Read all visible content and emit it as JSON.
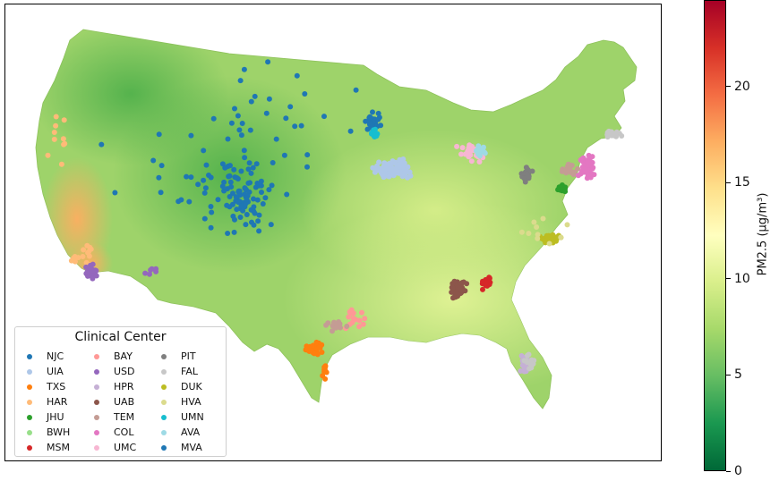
{
  "legend": {
    "title": "Clinical Center",
    "centers": [
      {
        "code": "NJC",
        "color": "#1f77b4"
      },
      {
        "code": "UIA",
        "color": "#aec7e8"
      },
      {
        "code": "TXS",
        "color": "#ff7f0e"
      },
      {
        "code": "HAR",
        "color": "#ffbb78"
      },
      {
        "code": "JHU",
        "color": "#2ca02c"
      },
      {
        "code": "BWH",
        "color": "#98df8a"
      },
      {
        "code": "MSM",
        "color": "#d62728"
      },
      {
        "code": "BAY",
        "color": "#ff9896"
      },
      {
        "code": "USD",
        "color": "#9467bd"
      },
      {
        "code": "HPR",
        "color": "#c5b0d5"
      },
      {
        "code": "UAB",
        "color": "#8c564b"
      },
      {
        "code": "TEM",
        "color": "#c49c94"
      },
      {
        "code": "COL",
        "color": "#e377c2"
      },
      {
        "code": "UMC",
        "color": "#f7b6d2"
      },
      {
        "code": "PIT",
        "color": "#7f7f7f"
      },
      {
        "code": "FAL",
        "color": "#c7c7c7"
      },
      {
        "code": "DUK",
        "color": "#bcbd22"
      },
      {
        "code": "HVA",
        "color": "#dbdb8d"
      },
      {
        "code": "UMN",
        "color": "#17becf"
      },
      {
        "code": "AVA",
        "color": "#9edae5"
      },
      {
        "code": "MVA",
        "color": "#1f77b4"
      }
    ]
  },
  "colorbar": {
    "label": "PM2.5 (μg/m³)",
    "min": 0,
    "max": 24.5,
    "ticks": [
      "0",
      "5",
      "10",
      "15",
      "20"
    ],
    "colormap": [
      "#006837",
      "#1a9850",
      "#66bd63",
      "#a6d96a",
      "#d9ef8b",
      "#ffffbf",
      "#fee08b",
      "#fdae61",
      "#f46d43",
      "#d73027",
      "#a50026"
    ]
  }
}
